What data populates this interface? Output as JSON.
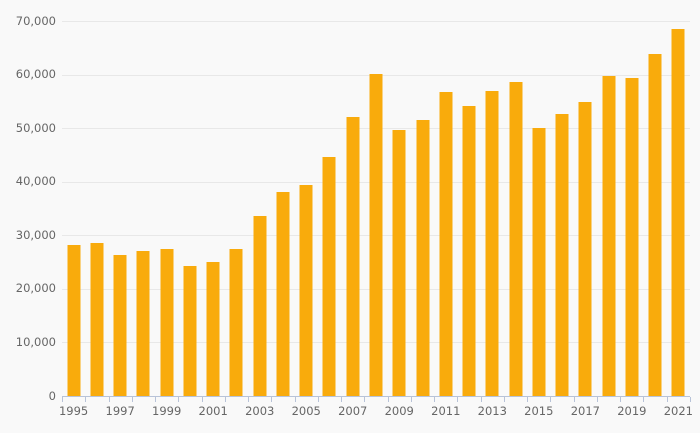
{
  "chart_data": {
    "type": "bar",
    "title": "",
    "xlabel": "",
    "ylabel": "",
    "categories": [
      "1995",
      "1996",
      "1997",
      "1998",
      "1999",
      "2000",
      "2001",
      "2002",
      "2003",
      "2004",
      "2005",
      "2006",
      "2007",
      "2008",
      "2009",
      "2010",
      "2011",
      "2012",
      "2013",
      "2014",
      "2015",
      "2016",
      "2017",
      "2018",
      "2019",
      "2020",
      "2021"
    ],
    "values": [
      28200,
      28600,
      26300,
      27100,
      27500,
      24200,
      25000,
      27500,
      33600,
      38100,
      39300,
      44700,
      52000,
      60200,
      49700,
      51600,
      56700,
      54200,
      56900,
      58700,
      50000,
      52600,
      54800,
      59800,
      59400,
      63900,
      68600
    ],
    "ylim": [
      0,
      70000
    ],
    "y_ticks": [
      0,
      10000,
      20000,
      30000,
      40000,
      50000,
      60000,
      70000
    ],
    "y_tick_labels": [
      "0",
      "10,000",
      "20,000",
      "30,000",
      "40,000",
      "50,000",
      "60,000",
      "70,000"
    ],
    "x_tick_labels": [
      "1995",
      "1997",
      "1999",
      "2001",
      "2003",
      "2005",
      "2007",
      "2009",
      "2011",
      "2013",
      "2015",
      "2017",
      "2019",
      "2021"
    ],
    "x_label_every": 2,
    "grid": true,
    "legend": false,
    "colors": {
      "bar": "#f9ab0c",
      "background": "#f9f9f9",
      "gridline": "#e8e8e8",
      "axis": "#b8c3d8",
      "label": "#666666"
    }
  }
}
